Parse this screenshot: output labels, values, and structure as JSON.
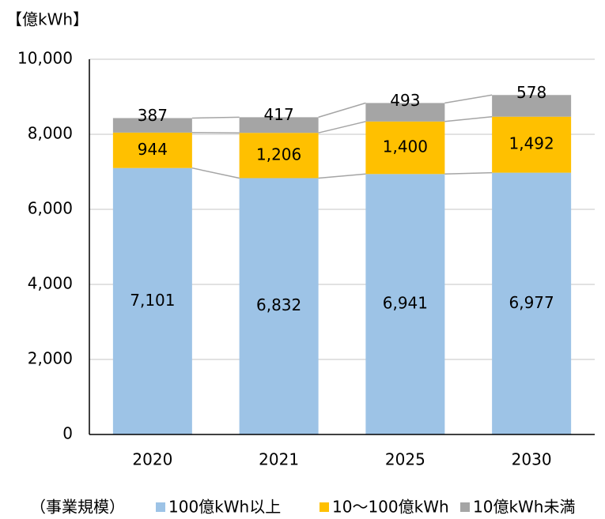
{
  "chart_data": {
    "type": "stacked_bar",
    "unit_label": "【億kWh】",
    "legend_title": "（事業規模）",
    "categories": [
      "2020",
      "2021",
      "2025",
      "2030"
    ],
    "series": [
      {
        "name": "100億kWh以上",
        "color": "#9dc3e6",
        "values": [
          7101,
          6832,
          6941,
          6977
        ],
        "value_labels": [
          "7,101",
          "6,832",
          "6,941",
          "6,977"
        ]
      },
      {
        "name": "10～100億kWh",
        "color": "#ffc000",
        "values": [
          944,
          1206,
          1400,
          1492
        ],
        "value_labels": [
          "944",
          "1,206",
          "1,400",
          "1,492"
        ]
      },
      {
        "name": "10億kWh未満",
        "color": "#a5a5a5",
        "values": [
          387,
          417,
          493,
          578
        ],
        "value_labels": [
          "387",
          "417",
          "493",
          "578"
        ]
      }
    ],
    "ylim": [
      0,
      10000
    ],
    "yticks": [
      0,
      {
        "value": 2000,
        "label": "2,000"
      },
      {
        "value": 4000,
        "label": "4,000"
      },
      {
        "value": 6000,
        "label": "6,000"
      },
      {
        "value": 8000,
        "label": "8,000"
      },
      {
        "value": 10000,
        "label": "10,000"
      }
    ],
    "grid": true,
    "legend": "bottom"
  }
}
